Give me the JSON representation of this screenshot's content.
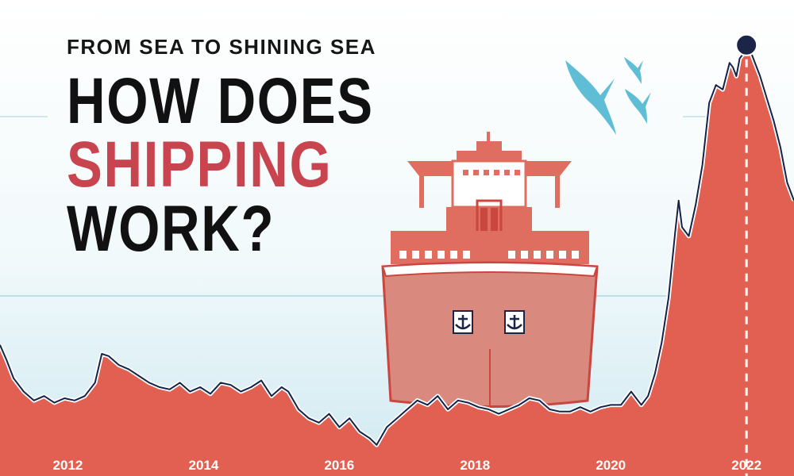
{
  "header": {
    "kicker": "FROM SEA TO SHINING SEA",
    "headline_line1": "HOW DOES",
    "headline_line2": "SHIPPING",
    "headline_line3": "WORK?"
  },
  "colors": {
    "area_fill": "#e26051",
    "line_stroke": "#13224a",
    "line_halo": "#ffffff",
    "headline_accent": "#c8444f",
    "headline_text": "#111111",
    "marker": "#1b2548",
    "ship_hull": "#d9897e",
    "ship_superstructure": "#df6e61",
    "bird": "#5fbed6"
  },
  "chart_data": {
    "type": "area",
    "title": "",
    "xlabel": "",
    "ylabel": "",
    "x_ticks": [
      "2012",
      "2014",
      "2016",
      "2018",
      "2020",
      "2022"
    ],
    "xlim": [
      2011.0,
      2022.7
    ],
    "ylim": [
      0,
      100
    ],
    "grid": false,
    "series": [
      {
        "x": [
          2011.0,
          2011.1,
          2011.2,
          2011.35,
          2011.5,
          2011.65,
          2011.8,
          2011.95,
          2012.1,
          2012.25,
          2012.4,
          2012.5,
          2012.6,
          2012.75,
          2012.9,
          2013.05,
          2013.2,
          2013.35,
          2013.5,
          2013.65,
          2013.8,
          2013.95,
          2014.1,
          2014.25,
          2014.4,
          2014.55,
          2014.7,
          2014.85,
          2015.0,
          2015.15,
          2015.25,
          2015.4,
          2015.55,
          2015.7,
          2015.85,
          2016.0,
          2016.15,
          2016.3,
          2016.45,
          2016.55,
          2016.7,
          2016.85,
          2017.0,
          2017.15,
          2017.3,
          2017.45,
          2017.6,
          2017.75,
          2017.9,
          2018.05,
          2018.2,
          2018.35,
          2018.5,
          2018.65,
          2018.8,
          2018.95,
          2019.1,
          2019.25,
          2019.4,
          2019.55,
          2019.7,
          2019.85,
          2020.0,
          2020.15,
          2020.3,
          2020.45,
          2020.55,
          2020.65,
          2020.75,
          2020.85,
          2020.95,
          2021.0,
          2021.05,
          2021.15,
          2021.25,
          2021.35,
          2021.45,
          2021.55,
          2021.65,
          2021.75,
          2021.8,
          2021.85,
          2021.9,
          2021.95,
          2022.0,
          2022.05,
          2022.1,
          2022.2,
          2022.3,
          2022.4,
          2022.5,
          2022.6,
          2022.7
        ],
        "values": [
          29.5,
          26,
          22,
          19,
          17,
          18,
          16.5,
          17.5,
          17,
          18,
          21,
          27.5,
          27,
          25,
          24,
          22.5,
          21,
          20,
          19.5,
          21,
          19,
          20,
          18.5,
          21,
          20.5,
          19,
          20,
          21.5,
          18,
          20,
          19,
          15,
          13,
          12,
          14,
          11,
          13,
          10,
          8.5,
          7,
          11,
          13,
          15,
          17,
          16,
          18,
          15,
          17,
          16.5,
          15.5,
          15,
          14,
          15,
          16,
          17.5,
          17,
          15,
          14.5,
          14.5,
          15.5,
          14.5,
          15.5,
          16,
          16,
          19,
          16,
          18,
          23,
          30,
          40,
          55,
          62,
          56,
          54,
          61,
          70,
          84,
          88,
          87,
          93,
          92,
          90,
          94,
          95,
          97,
          96,
          94,
          90,
          85,
          80,
          74,
          66,
          62
        ]
      }
    ],
    "marker": {
      "x": 2022.0,
      "y": 97
    }
  }
}
